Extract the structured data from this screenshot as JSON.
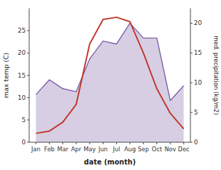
{
  "chart_data": {
    "type": "line",
    "xlabel": "date (month)",
    "ylabel": "max temp (C)",
    "y2label": "med. precipitation (kg/m2)",
    "categories": [
      "Jan",
      "Feb",
      "Mar",
      "Apr",
      "May",
      "Jun",
      "Jul",
      "Aug",
      "Sep",
      "Oct",
      "Nov",
      "Dec"
    ],
    "series": [
      {
        "type": "area",
        "axis": "y2",
        "color": "#7b5ea7",
        "values": [
          8.0,
          10.5,
          9.0,
          8.5,
          14.0,
          17.0,
          16.5,
          20.0,
          17.5,
          17.5,
          7.0,
          9.5
        ]
      },
      {
        "type": "line",
        "color": "#c0392b",
        "values": [
          2.0,
          2.5,
          4.5,
          8.5,
          22.0,
          27.5,
          28.0,
          27.0,
          20.0,
          12.0,
          6.5,
          3.0
        ]
      }
    ],
    "ylim": [
      0,
      30
    ],
    "yticks": [
      0,
      5,
      10,
      15,
      20,
      25
    ],
    "y2lim": [
      0,
      22.5
    ],
    "y2ticks": [
      0,
      5,
      10,
      15,
      20
    ],
    "grid": false
  }
}
